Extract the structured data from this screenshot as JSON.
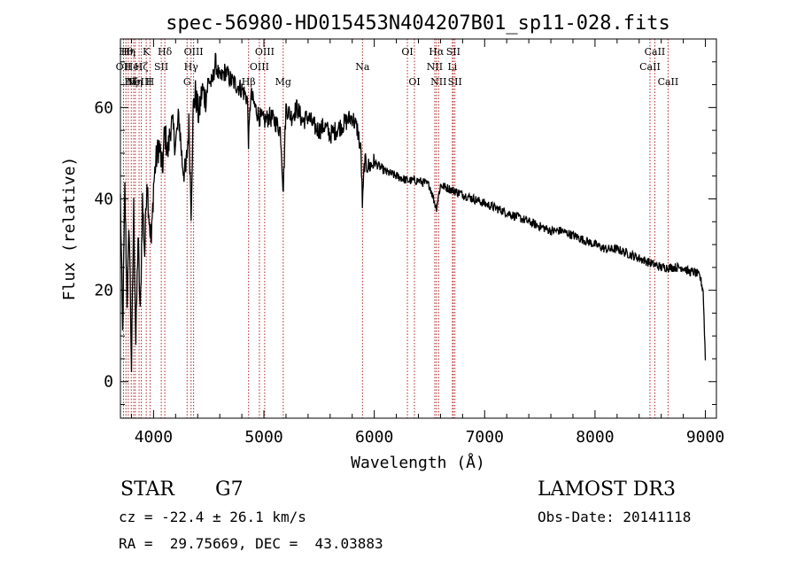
{
  "chart_data": {
    "type": "line",
    "title": "spec-56980-HD015453N404207B01_sp11-028.fits",
    "xlabel": "Wavelength (Å)",
    "ylabel": "Flux (relative)",
    "xlim": [
      3700,
      9100
    ],
    "ylim": [
      -8,
      75
    ],
    "xticks": [
      4000,
      5000,
      6000,
      7000,
      8000,
      9000
    ],
    "yticks": [
      0,
      20,
      40,
      60
    ],
    "grid": false,
    "series": [
      {
        "name": "spectrum",
        "x": [
          3700,
          3720,
          3740,
          3760,
          3780,
          3800,
          3820,
          3840,
          3860,
          3880,
          3900,
          3920,
          3940,
          3960,
          3980,
          4000,
          4020,
          4050,
          4080,
          4100,
          4130,
          4160,
          4200,
          4230,
          4260,
          4290,
          4320,
          4340,
          4360,
          4380,
          4410,
          4440,
          4470,
          4500,
          4530,
          4560,
          4600,
          4650,
          4700,
          4750,
          4800,
          4850,
          4861,
          4880,
          4920,
          4960,
          5000,
          5050,
          5100,
          5150,
          5175,
          5200,
          5250,
          5300,
          5350,
          5400,
          5450,
          5500,
          5550,
          5600,
          5650,
          5700,
          5750,
          5800,
          5850,
          5880,
          5893,
          5910,
          5950,
          6000,
          6100,
          6200,
          6300,
          6400,
          6500,
          6563,
          6600,
          6700,
          6800,
          6900,
          7000,
          7100,
          7200,
          7300,
          7400,
          7500,
          7600,
          7700,
          7800,
          7900,
          8000,
          8100,
          8200,
          8300,
          8400,
          8500,
          8600,
          8700,
          8800,
          8850,
          8900,
          8950,
          8980,
          9000
        ],
        "values": [
          40,
          10,
          42,
          18,
          34,
          3,
          38,
          8,
          32,
          14,
          40,
          28,
          45,
          36,
          30,
          43,
          48,
          52,
          46,
          55,
          50,
          57,
          52,
          58,
          48,
          45,
          56,
          38,
          60,
          63,
          58,
          64,
          62,
          66,
          65,
          70,
          66,
          68,
          66,
          65,
          64,
          62,
          52,
          63,
          60,
          58,
          57,
          58,
          57,
          55,
          42,
          60,
          58,
          60,
          57,
          58,
          56,
          55,
          56,
          54,
          55,
          56,
          57,
          58,
          55,
          50,
          38,
          48,
          47,
          48,
          46,
          45,
          44,
          44,
          43,
          38,
          43,
          42,
          41,
          40,
          39,
          38,
          37,
          36,
          35,
          34,
          33,
          33,
          32,
          31,
          30,
          29,
          29,
          28,
          27,
          26,
          25,
          25,
          25,
          24,
          24,
          23,
          20,
          5
        ]
      }
    ],
    "lines": [
      {
        "x": 3728,
        "label": "OII",
        "row": 2
      },
      {
        "x": 3750,
        "label": "Hθ",
        "row": 1
      },
      {
        "x": 3771,
        "label": "Hη",
        "row": 1
      },
      {
        "x": 3798,
        "label": "Hζ",
        "row": 3
      },
      {
        "x": 3820,
        "label": "HeI",
        "row": 2
      },
      {
        "x": 3835,
        "label": "Hη",
        "row": 3
      },
      {
        "x": 3869,
        "label": "NeIII",
        "row": 3
      },
      {
        "x": 3889,
        "label": "Hζ",
        "row": 2
      },
      {
        "x": 3934,
        "label": "K",
        "row": 1
      },
      {
        "x": 3968,
        "label": "H",
        "row": 3
      },
      {
        "x": 4070,
        "label": "SII",
        "row": 2
      },
      {
        "x": 4102,
        "label": "Hδ",
        "row": 1
      },
      {
        "x": 4304,
        "label": "G",
        "row": 3
      },
      {
        "x": 4340,
        "label": "Hγ",
        "row": 2
      },
      {
        "x": 4363,
        "label": "OIII",
        "row": 1
      },
      {
        "x": 4861,
        "label": "Hβ",
        "row": 3
      },
      {
        "x": 4959,
        "label": "OIII",
        "row": 2
      },
      {
        "x": 5007,
        "label": "OIII",
        "row": 1
      },
      {
        "x": 5175,
        "label": "Mg",
        "row": 3
      },
      {
        "x": 5893,
        "label": "Na",
        "row": 2
      },
      {
        "x": 6300,
        "label": "OI",
        "row": 1
      },
      {
        "x": 6364,
        "label": "OI",
        "row": 3
      },
      {
        "x": 6548,
        "label": "NII",
        "row": 2
      },
      {
        "x": 6563,
        "label": "Hα",
        "row": 1
      },
      {
        "x": 6583,
        "label": "NII",
        "row": 3
      },
      {
        "x": 6708,
        "label": "Li",
        "row": 2
      },
      {
        "x": 6716,
        "label": "SII",
        "row": 1
      },
      {
        "x": 6731,
        "label": "SII",
        "row": 3
      },
      {
        "x": 8498,
        "label": "CaII",
        "row": 2
      },
      {
        "x": 8542,
        "label": "CaII",
        "row": 1
      },
      {
        "x": 8662,
        "label": "CaII",
        "row": 3
      }
    ]
  },
  "info": {
    "object_type": "STAR",
    "subclass": "G7",
    "survey": "LAMOST DR3",
    "cz": "cz = -22.4 ± 26.1 km/s",
    "obs_date": "Obs-Date: 20141118",
    "coords": "RA =  29.75669, DEC =  43.03883"
  },
  "colors": {
    "axis": "#000000",
    "spectrum": "#000000",
    "line_marker": "#b22222"
  }
}
